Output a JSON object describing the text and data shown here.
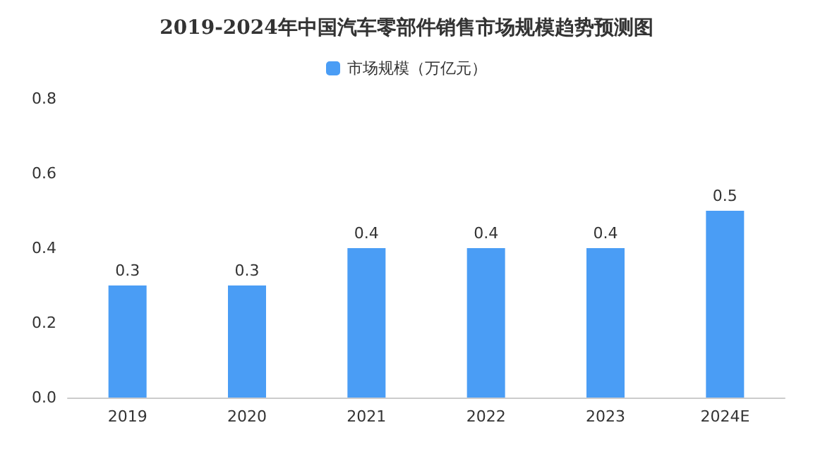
{
  "chart_data": {
    "type": "bar",
    "title": "2019-2024年中国汽车零部件销售市场规模趋势预测图",
    "categories": [
      "2019",
      "2020",
      "2021",
      "2022",
      "2023",
      "2024E"
    ],
    "series": [
      {
        "name": "市场规模（万亿元）",
        "color": "#4a9df5",
        "values": [
          0.3,
          0.3,
          0.4,
          0.4,
          0.4,
          0.5
        ]
      }
    ],
    "ylim": [
      0,
      0.8
    ],
    "yticks": [
      {
        "value": 0,
        "label": "0.0"
      },
      {
        "value": 0.2,
        "label": "0.2"
      },
      {
        "value": 0.4,
        "label": "0.4"
      },
      {
        "value": 0.6,
        "label": "0.6"
      },
      {
        "value": 0.8,
        "label": "0.8"
      }
    ],
    "data_labels": true,
    "legend": "top",
    "grid": false
  }
}
